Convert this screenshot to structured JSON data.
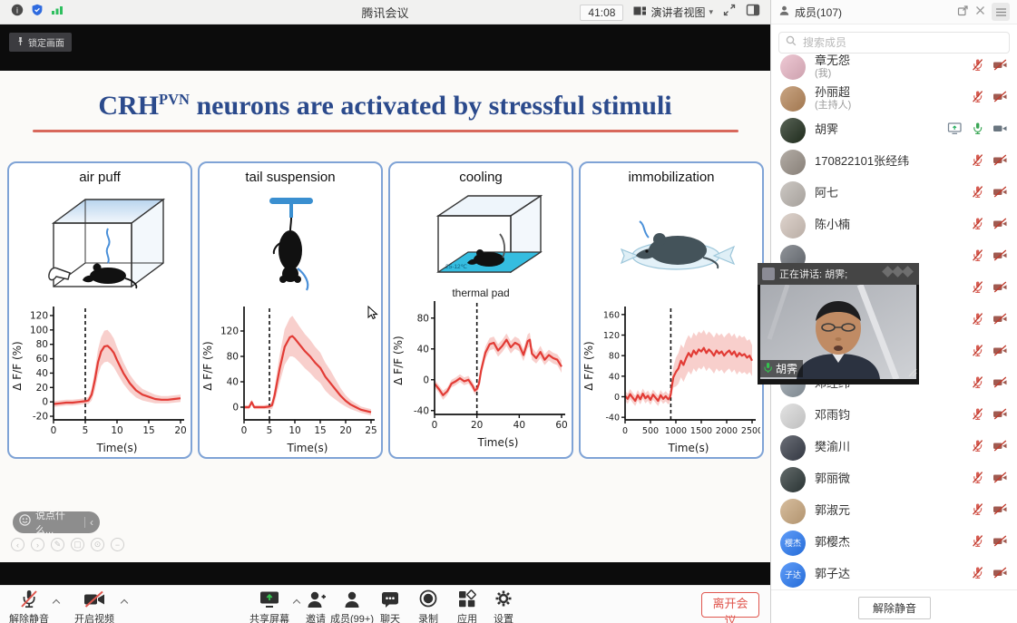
{
  "titlebar": {
    "app_title": "腾讯会议",
    "timer": "41:08",
    "view_mode": "演讲者视图",
    "pin_label": "锁定画面"
  },
  "members_panel": {
    "title": "成员(107)",
    "search_placeholder": "搜索成员",
    "footer_unmute": "解除静音",
    "members": [
      {
        "name": "章无怨",
        "sub": "(我)",
        "avatar": {
          "color": "#e9b7c6"
        },
        "icons": [
          "mic-muted",
          "cam-off"
        ]
      },
      {
        "name": "孙丽超",
        "sub": "(主持人)",
        "avatar": {
          "color": "#b7875a"
        },
        "icons": [
          "mic-muted",
          "cam-off"
        ]
      },
      {
        "name": "胡霁",
        "sub": "",
        "avatar": {
          "color": "#22301f"
        },
        "icons": [
          "screen",
          "mic-on",
          "cam-on"
        ]
      },
      {
        "name": "170822101张经纬",
        "sub": "",
        "avatar": {
          "color": "#9a9188"
        },
        "icons": [
          "mic-muted",
          "cam-off"
        ]
      },
      {
        "name": "阿七",
        "sub": "",
        "avatar": {
          "color": "#bcb6b0"
        },
        "icons": [
          "mic-muted",
          "cam-off"
        ]
      },
      {
        "name": "陈小楠",
        "sub": "",
        "avatar": {
          "color": "#d3c5bc"
        },
        "icons": [
          "mic-muted",
          "cam-off"
        ]
      },
      {
        "name": "",
        "sub": "",
        "covered": true,
        "avatar": {
          "color": "#6b7077"
        },
        "icons": [
          "mic-muted",
          "cam-off"
        ]
      },
      {
        "name": "",
        "sub": "",
        "covered": true,
        "avatar": {
          "color": "#7a8088"
        },
        "icons": [
          "mic-muted",
          "cam-off"
        ]
      },
      {
        "name": "",
        "sub": "",
        "covered": true,
        "avatar": {
          "color": "#8a8f96"
        },
        "icons": [
          "mic-muted",
          "cam-off"
        ]
      },
      {
        "name": "",
        "sub": "",
        "covered": true,
        "avatar": {
          "color": "#6f747c"
        },
        "icons": [
          "mic-muted",
          "cam-off"
        ]
      },
      {
        "name": "邓经纬",
        "sub": "",
        "avatar": {
          "color": "#8f9aa3"
        },
        "icons": [
          "mic-muted",
          "cam-off"
        ]
      },
      {
        "name": "邓雨钧",
        "sub": "",
        "avatar": {
          "color": "#d9d9d9"
        },
        "icons": [
          "mic-muted",
          "cam-off"
        ]
      },
      {
        "name": "樊渝川",
        "sub": "",
        "avatar": {
          "color": "#3a3f4a"
        },
        "icons": [
          "mic-muted",
          "cam-off"
        ]
      },
      {
        "name": "郭丽微",
        "sub": "",
        "avatar": {
          "color": "#2f3a3a"
        },
        "icons": [
          "mic-muted",
          "cam-off"
        ]
      },
      {
        "name": "郭淑元",
        "sub": "",
        "avatar": {
          "color": "#caa87e"
        },
        "icons": [
          "mic-muted",
          "cam-off"
        ]
      },
      {
        "name": "郭樱杰",
        "sub": "",
        "avatar": {
          "color": "#2a7bf6",
          "text": "樱杰"
        },
        "icons": [
          "mic-muted",
          "cam-off"
        ]
      },
      {
        "name": "郭子达",
        "sub": "",
        "avatar": {
          "color": "#2a7bf6",
          "text": "子达"
        },
        "icons": [
          "mic-muted",
          "cam-off"
        ]
      }
    ]
  },
  "speaker_overlay": {
    "speaking_label": "正在讲话: 胡霁;",
    "name_tag": "胡霁"
  },
  "slide": {
    "title_pre": "CRH",
    "title_sup": "PVN",
    "title_post": " neurons are activated by stressful stimuli",
    "panels": [
      {
        "label": "air puff",
        "caption": "",
        "pad_label": ""
      },
      {
        "label": "tail suspension",
        "caption": "",
        "pad_label": ""
      },
      {
        "label": "cooling",
        "caption": "thermal pad",
        "pad_label": "25-12℃"
      },
      {
        "label": "immobilization",
        "caption": "",
        "pad_label": ""
      }
    ]
  },
  "chat_bar": {
    "placeholder": "说点什么..."
  },
  "toolbar": {
    "items": [
      {
        "label": "解除静音"
      },
      {
        "label": "开启视频"
      },
      {
        "label": "共享屏幕"
      },
      {
        "label": "邀请"
      },
      {
        "label": "成员(99+)"
      },
      {
        "label": "聊天"
      },
      {
        "label": "录制"
      },
      {
        "label": "应用"
      },
      {
        "label": "设置"
      }
    ],
    "leave_label": "离开会议"
  },
  "colors": {
    "title_blue": "#2b4a8c",
    "divider_red": "#d8685c",
    "panel_border": "#7fa3d6",
    "chart_line": "#e23b35",
    "chart_band": "#f6c3bf",
    "mute_red": "#d65c52",
    "share_green": "#27ae60",
    "leave_red": "#e0564e",
    "member_avatar_blue": "#2a7bf6"
  },
  "chart_data": [
    {
      "type": "line",
      "panel": "air puff",
      "xlabel": "Time(s)",
      "ylabel": "Δ F/F (%)",
      "xlim": [
        0,
        20
      ],
      "ylim": [
        -25,
        125
      ],
      "xticks": [
        0,
        5,
        10,
        15,
        20
      ],
      "yticks": [
        -20,
        0,
        20,
        40,
        60,
        80,
        100,
        120
      ],
      "stim_onset": 5,
      "legend": "none",
      "grid": false,
      "x": [
        0,
        1,
        2,
        3,
        4,
        5,
        5.5,
        6,
        6.5,
        7,
        7.5,
        8,
        8.5,
        9,
        9.5,
        10,
        11,
        12,
        13,
        14,
        15,
        16,
        17,
        18,
        19,
        20
      ],
      "y": [
        -3,
        -2,
        -1,
        -1,
        0,
        1,
        2,
        10,
        30,
        55,
        70,
        77,
        78,
        74,
        68,
        58,
        40,
        26,
        16,
        10,
        7,
        4,
        3,
        3,
        4,
        5
      ],
      "err": [
        4,
        4,
        4,
        4,
        4,
        4,
        5,
        8,
        14,
        18,
        20,
        22,
        22,
        21,
        20,
        18,
        15,
        12,
        10,
        8,
        7,
        6,
        5,
        5,
        5,
        5
      ]
    },
    {
      "type": "line",
      "panel": "tail suspension",
      "xlabel": "Time(s)",
      "ylabel": "Δ F/F (%)",
      "xlim": [
        0,
        25
      ],
      "ylim": [
        -20,
        150
      ],
      "xticks": [
        0,
        5,
        10,
        15,
        20,
        25
      ],
      "yticks": [
        0,
        40,
        80,
        120
      ],
      "stim_onset": 5,
      "legend": "none",
      "grid": false,
      "x": [
        0,
        1,
        1.5,
        2,
        3,
        4,
        5,
        5.5,
        6,
        7,
        8,
        9,
        9.5,
        10,
        11,
        12,
        13,
        14,
        15,
        16,
        17,
        18,
        19,
        20,
        21,
        22,
        23,
        24,
        25
      ],
      "y": [
        0,
        0,
        8,
        0,
        0,
        0,
        1,
        3,
        18,
        60,
        95,
        110,
        112,
        108,
        98,
        88,
        80,
        70,
        62,
        48,
        38,
        28,
        18,
        10,
        4,
        0,
        -4,
        -6,
        -8
      ],
      "err": [
        3,
        3,
        4,
        3,
        3,
        3,
        4,
        6,
        12,
        22,
        28,
        30,
        32,
        30,
        28,
        27,
        26,
        25,
        24,
        22,
        20,
        16,
        12,
        9,
        7,
        6,
        5,
        5,
        5
      ]
    },
    {
      "type": "line",
      "panel": "cooling",
      "xlabel": "Time(s)",
      "ylabel": "Δ F/F (%)",
      "xlim": [
        0,
        60
      ],
      "ylim": [
        -45,
        95
      ],
      "xticks": [
        0,
        20,
        40,
        60
      ],
      "yticks": [
        -40,
        0,
        40,
        80
      ],
      "stim_onset": 20,
      "legend": "none",
      "grid": false,
      "x": [
        0,
        2,
        4,
        6,
        8,
        10,
        12,
        14,
        16,
        18,
        19,
        20,
        21,
        22,
        24,
        26,
        28,
        30,
        32,
        34,
        36,
        38,
        40,
        42,
        44,
        45,
        46,
        48,
        50,
        52,
        54,
        56,
        58,
        60
      ],
      "y": [
        -5,
        -12,
        -20,
        -15,
        -5,
        -2,
        2,
        -2,
        0,
        -8,
        -14,
        -12,
        -5,
        12,
        35,
        46,
        48,
        38,
        44,
        52,
        42,
        48,
        45,
        32,
        50,
        52,
        34,
        28,
        36,
        26,
        32,
        28,
        26,
        17
      ],
      "err": [
        5,
        5,
        6,
        5,
        5,
        5,
        5,
        5,
        5,
        5,
        5,
        5,
        6,
        7,
        8,
        8,
        8,
        8,
        8,
        8,
        8,
        8,
        8,
        8,
        9,
        9,
        8,
        7,
        8,
        7,
        7,
        7,
        7,
        8
      ]
    },
    {
      "type": "line",
      "panel": "immobilization",
      "xlabel": "Time(s)",
      "ylabel": "Δ F/F (%)",
      "xlim": [
        0,
        2500
      ],
      "ylim": [
        -45,
        165
      ],
      "xticks": [
        0,
        500,
        1000,
        1500,
        2000,
        2500
      ],
      "yticks": [
        -40,
        0,
        40,
        80,
        120,
        160
      ],
      "stim_onset": 900,
      "legend": "none",
      "grid": false,
      "tick_fs": 9.5,
      "x": [
        0,
        50,
        100,
        150,
        200,
        250,
        300,
        350,
        400,
        450,
        500,
        550,
        600,
        650,
        700,
        750,
        800,
        850,
        880,
        900,
        920,
        950,
        1000,
        1050,
        1100,
        1150,
        1200,
        1250,
        1300,
        1350,
        1400,
        1450,
        1500,
        1550,
        1600,
        1650,
        1700,
        1750,
        1800,
        1850,
        1900,
        1950,
        2000,
        2050,
        2100,
        2150,
        2200,
        2250,
        2300,
        2350,
        2400,
        2450,
        2500
      ],
      "y": [
        2,
        -4,
        5,
        -2,
        -8,
        3,
        -5,
        6,
        -3,
        2,
        -6,
        4,
        -2,
        -8,
        3,
        -4,
        1,
        -5,
        -2,
        5,
        20,
        38,
        48,
        55,
        70,
        62,
        75,
        85,
        78,
        90,
        83,
        92,
        88,
        95,
        85,
        92,
        87,
        80,
        90,
        84,
        88,
        80,
        86,
        90,
        82,
        88,
        78,
        85,
        80,
        83,
        76,
        80,
        70
      ],
      "err": [
        10,
        10,
        10,
        10,
        10,
        10,
        10,
        10,
        10,
        10,
        10,
        10,
        10,
        10,
        10,
        10,
        10,
        10,
        10,
        12,
        15,
        20,
        28,
        30,
        32,
        33,
        35,
        35,
        35,
        35,
        35,
        35,
        35,
        35,
        35,
        35,
        35,
        35,
        35,
        35,
        35,
        35,
        35,
        35,
        35,
        35,
        35,
        35,
        35,
        35,
        33,
        32,
        30
      ]
    }
  ]
}
